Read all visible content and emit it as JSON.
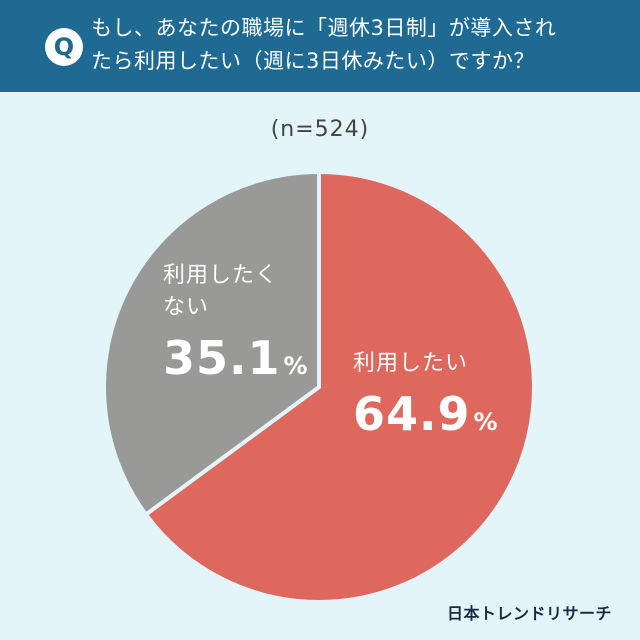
{
  "header": {
    "badge": "Q",
    "question_line1": "もし、あなたの職場に「週休3日制」が導入され",
    "question_line2": "たら利用したい（週に3日休みたい）ですか？",
    "background_color": "#1f6a93"
  },
  "sample_size": "(n=524)",
  "brand": "日本トレンドリサーチ",
  "chart_data": {
    "type": "pie",
    "title": "もし、あなたの職場に「週休3日制」が導入されたら利用したい（週に3日休みたい）ですか？",
    "subtitle": "(n=524)",
    "categories": [
      "利用したい",
      "利用したくない"
    ],
    "values": [
      64.9,
      35.1
    ],
    "unit": "%",
    "colors": [
      "#de685d",
      "#999998"
    ],
    "start_angle_deg": 0,
    "direction": "clockwise",
    "legend": "none (inline labels)"
  },
  "labels": {
    "want": {
      "name": "利用したい",
      "value": "64.9",
      "unit": "%"
    },
    "not_want": {
      "name_line1": "利用したく",
      "name_line2": "ない",
      "value": "35.1",
      "unit": "%"
    }
  }
}
